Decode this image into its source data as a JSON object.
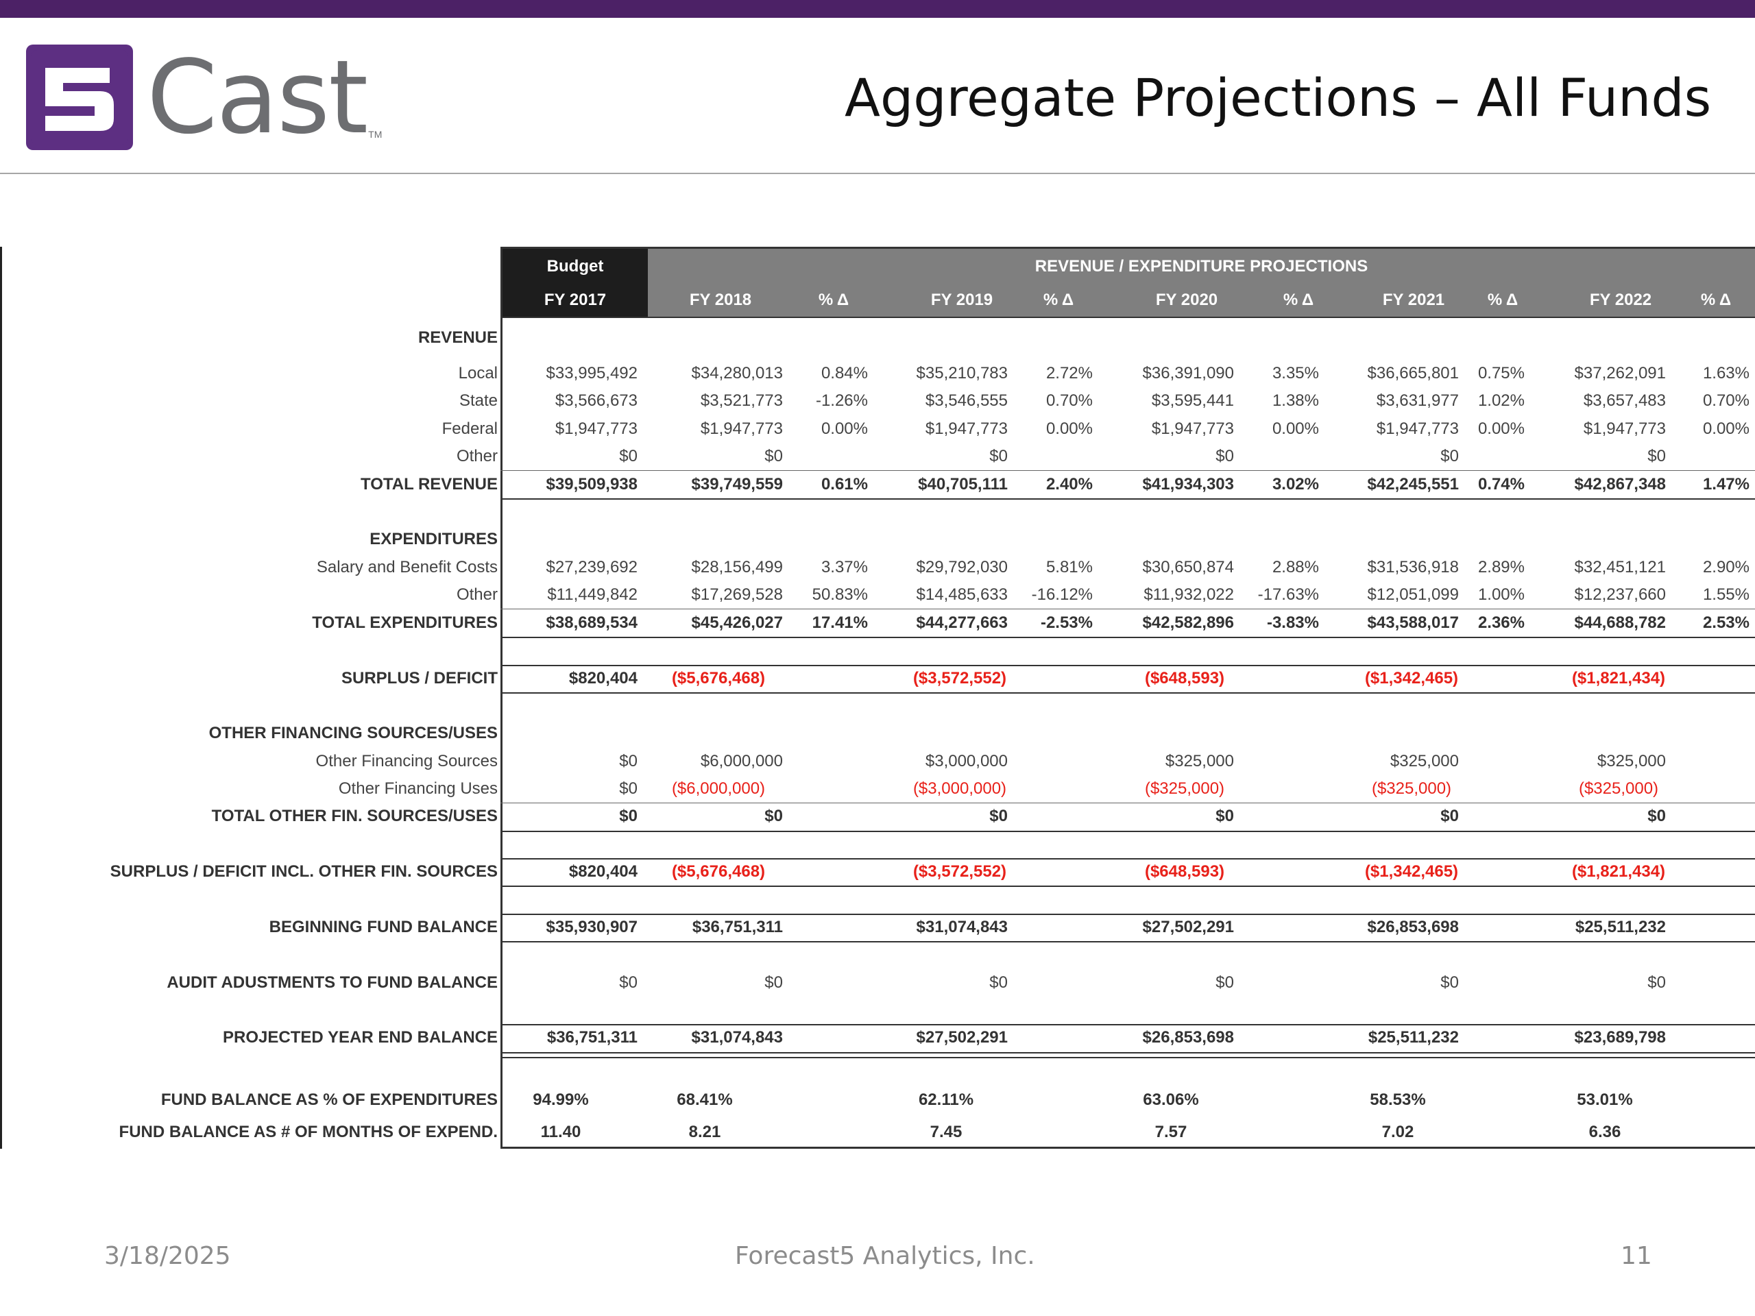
{
  "logo": {
    "text": "Cast",
    "mark": "5",
    "tm": "TM"
  },
  "title": "Aggregate Projections – All Funds",
  "header": {
    "budget": "Budget",
    "projections": "REVENUE / EXPENDITURE PROJECTIONS",
    "columns": [
      "FY 2017",
      "FY 2018",
      "% Δ",
      "FY 2019",
      "% Δ",
      "FY 2020",
      "% Δ",
      "FY 2021",
      "% Δ",
      "FY 2022",
      "% Δ"
    ]
  },
  "rows": [
    {
      "label": "REVENUE",
      "type": "section",
      "values": []
    },
    {
      "label": "Local",
      "type": "normal",
      "values": [
        "$33,995,492",
        "$34,280,013",
        "0.84%",
        "$35,210,783",
        "2.72%",
        "$36,391,090",
        "3.35%",
        "$36,665,801",
        "0.75%",
        "$37,262,091",
        "1.63%"
      ]
    },
    {
      "label": "State",
      "type": "normal",
      "values": [
        "$3,566,673",
        "$3,521,773",
        "-1.26%",
        "$3,546,555",
        "0.70%",
        "$3,595,441",
        "1.38%",
        "$3,631,977",
        "1.02%",
        "$3,657,483",
        "0.70%"
      ]
    },
    {
      "label": "Federal",
      "type": "normal",
      "values": [
        "$1,947,773",
        "$1,947,773",
        "0.00%",
        "$1,947,773",
        "0.00%",
        "$1,947,773",
        "0.00%",
        "$1,947,773",
        "0.00%",
        "$1,947,773",
        "0.00%"
      ]
    },
    {
      "label": "Other",
      "type": "normal",
      "values": [
        "$0",
        "$0",
        "",
        "$0",
        "",
        "$0",
        "",
        "$0",
        "",
        "$0",
        ""
      ]
    },
    {
      "label": "TOTAL REVENUE",
      "type": "total",
      "values": [
        "$39,509,938",
        "$39,749,559",
        "0.61%",
        "$40,705,111",
        "2.40%",
        "$41,934,303",
        "3.02%",
        "$42,245,551",
        "0.74%",
        "$42,867,348",
        "1.47%"
      ]
    },
    {
      "label": "EXPENDITURES",
      "type": "section",
      "values": []
    },
    {
      "label": "Salary and Benefit Costs",
      "type": "normal",
      "values": [
        "$27,239,692",
        "$28,156,499",
        "3.37%",
        "$29,792,030",
        "5.81%",
        "$30,650,874",
        "2.88%",
        "$31,536,918",
        "2.89%",
        "$32,451,121",
        "2.90%"
      ]
    },
    {
      "label": "Other",
      "type": "normal",
      "values": [
        "$11,449,842",
        "$17,269,528",
        "50.83%",
        "$14,485,633",
        "-16.12%",
        "$11,932,022",
        "-17.63%",
        "$12,051,099",
        "1.00%",
        "$12,237,660",
        "1.55%"
      ]
    },
    {
      "label": "TOTAL EXPENDITURES",
      "type": "total",
      "values": [
        "$38,689,534",
        "$45,426,027",
        "17.41%",
        "$44,277,663",
        "-2.53%",
        "$42,582,896",
        "-3.83%",
        "$43,588,017",
        "2.36%",
        "$44,688,782",
        "2.53%"
      ]
    },
    {
      "label": "SURPLUS / DEFICIT",
      "type": "total",
      "values": [
        "$820,404",
        "($5,676,468)",
        "",
        "($3,572,552)",
        "",
        "($648,593)",
        "",
        "($1,342,465)",
        "",
        "($1,821,434)",
        ""
      ]
    },
    {
      "label": "OTHER FINANCING SOURCES/USES",
      "type": "section",
      "values": []
    },
    {
      "label": "Other Financing Sources",
      "type": "normal",
      "values": [
        "$0",
        "$6,000,000",
        "",
        "$3,000,000",
        "",
        "$325,000",
        "",
        "$325,000",
        "",
        "$325,000",
        ""
      ]
    },
    {
      "label": "Other Financing Uses",
      "type": "normal",
      "values": [
        "$0",
        "($6,000,000)",
        "",
        "($3,000,000)",
        "",
        "($325,000)",
        "",
        "($325,000)",
        "",
        "($325,000)",
        ""
      ]
    },
    {
      "label": "TOTAL OTHER FIN. SOURCES/USES",
      "type": "total",
      "values": [
        "$0",
        "$0",
        "",
        "$0",
        "",
        "$0",
        "",
        "$0",
        "",
        "$0",
        ""
      ]
    },
    {
      "label": "SURPLUS / DEFICIT INCL. OTHER FIN. SOURCES",
      "type": "total",
      "values": [
        "$820,404",
        "($5,676,468)",
        "",
        "($3,572,552)",
        "",
        "($648,593)",
        "",
        "($1,342,465)",
        "",
        "($1,821,434)",
        ""
      ]
    },
    {
      "label": "BEGINNING FUND BALANCE",
      "type": "total",
      "values": [
        "$35,930,907",
        "$36,751,311",
        "",
        "$31,074,843",
        "",
        "$27,502,291",
        "",
        "$26,853,698",
        "",
        "$25,511,232",
        ""
      ]
    },
    {
      "label": "AUDIT ADUSTMENTS TO FUND BALANCE",
      "type": "audit",
      "values": [
        "$0",
        "$0",
        "",
        "$0",
        "",
        "$0",
        "",
        "$0",
        "",
        "$0",
        ""
      ]
    },
    {
      "label": "PROJECTED YEAR END BALANCE",
      "type": "total",
      "values": [
        "$36,751,311",
        "$31,074,843",
        "",
        "$27,502,291",
        "",
        "$26,853,698",
        "",
        "$25,511,232",
        "",
        "$23,689,798",
        ""
      ]
    },
    {
      "label": "FUND BALANCE AS % OF EXPENDITURES",
      "type": "ratio",
      "values": [
        "94.99%",
        "68.41%",
        "",
        "62.11%",
        "",
        "63.06%",
        "",
        "58.53%",
        "",
        "53.01%",
        ""
      ]
    },
    {
      "label": "FUND BALANCE AS # OF MONTHS OF EXPEND.",
      "type": "ratio",
      "values": [
        "11.40",
        "8.21",
        "",
        "7.45",
        "",
        "7.57",
        "",
        "7.02",
        "",
        "6.36",
        ""
      ]
    }
  ],
  "footer": {
    "date": "3/18/2025",
    "company": "Forecast5 Analytics, Inc.",
    "page": "11"
  },
  "colors": {
    "brand_purple": "#4c2166",
    "negative_red": "#e8211a",
    "header_dark": "#1d1d1d",
    "header_gray": "#7f7f7f"
  }
}
